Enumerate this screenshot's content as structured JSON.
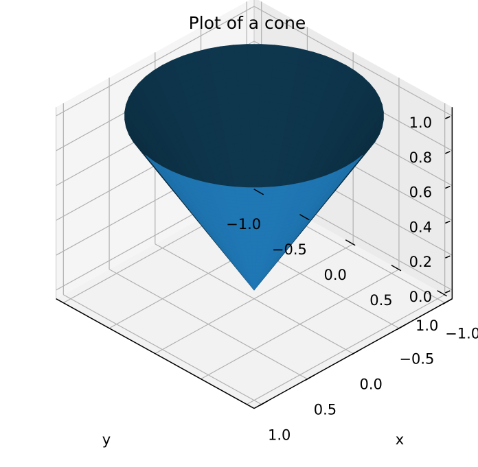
{
  "chart_data": {
    "type": "surface3d",
    "title": "Plot of a cone",
    "surface": {
      "name": "",
      "equation": "z = sqrt(x^2 + y^2)",
      "r_range": [
        0,
        1
      ],
      "theta_range": [
        0,
        6.283185307
      ],
      "resolution": {
        "r": 30,
        "theta": 60
      },
      "color": "#1f77b4"
    },
    "axes": {
      "x": {
        "label": "x",
        "range": [
          -1.0,
          1.0
        ],
        "ticks": [
          -1.0,
          -0.5,
          0.0,
          0.5,
          1.0
        ],
        "tick_labels": [
          "−1.0",
          "−0.5",
          "0.0",
          "0.5",
          "1.0"
        ]
      },
      "y": {
        "label": "y",
        "range": [
          -1.0,
          1.0
        ],
        "ticks": [
          -1.0,
          -0.5,
          0.0,
          0.5,
          1.0
        ],
        "tick_labels": [
          "−1.0",
          "−0.5",
          "0.0",
          "0.5",
          "1.0"
        ]
      },
      "z": {
        "label": "",
        "range": [
          0.0,
          1.0
        ],
        "ticks": [
          0.0,
          0.2,
          0.4,
          0.6,
          0.8,
          1.0
        ],
        "tick_labels": [
          "0.0",
          "0.2",
          "0.4",
          "0.6",
          "0.8",
          "1.0"
        ]
      }
    },
    "view": {
      "elev_deg": 30,
      "azim_deg": 45
    },
    "grid": true,
    "pane_color": "#f2f2f2",
    "grid_color": "#b0b0b0"
  }
}
